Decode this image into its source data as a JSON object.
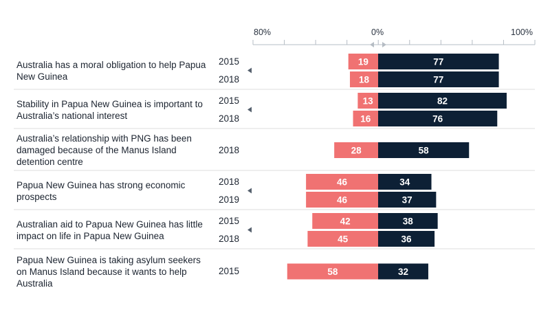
{
  "chart_data": {
    "type": "bar",
    "orientation": "horizontal-diverging",
    "axis_labels": [
      "80%",
      "0%",
      "100%"
    ],
    "colors": {
      "disagree": "#f07272",
      "agree": "#0d2035",
      "grid": "#dddddd",
      "axis": "#b5bcc4",
      "text": "#1c2430"
    },
    "groups": [
      {
        "label": "Australia has a moral obligation to help Papua New Guinea",
        "rows": [
          {
            "year": "2015",
            "disagree": 19,
            "agree": 77
          },
          {
            "year": "2018",
            "disagree": 18,
            "agree": 77
          }
        ]
      },
      {
        "label": "Stability in Papua New Guinea is important to Australia’s national interest",
        "rows": [
          {
            "year": "2015",
            "disagree": 13,
            "agree": 82
          },
          {
            "year": "2018",
            "disagree": 16,
            "agree": 76
          }
        ]
      },
      {
        "label": "Australia’s relationship with PNG has been damaged because of the Manus Island detention centre",
        "rows": [
          {
            "year": "2018",
            "disagree": 28,
            "agree": 58
          }
        ]
      },
      {
        "label": "Papua New Guinea has strong economic prospects",
        "rows": [
          {
            "year": "2018",
            "disagree": 46,
            "agree": 34
          },
          {
            "year": "2019",
            "disagree": 46,
            "agree": 37
          }
        ]
      },
      {
        "label": "Australian aid to Papua New Guinea has little impact on life in Papua New Guinea",
        "rows": [
          {
            "year": "2015",
            "disagree": 42,
            "agree": 38
          },
          {
            "year": "2018",
            "disagree": 45,
            "agree": 36
          }
        ]
      },
      {
        "label": "Papua New Guinea is taking asylum seekers on Manus Island because it wants to help Australia",
        "rows": [
          {
            "year": "2015",
            "disagree": 58,
            "agree": 32
          }
        ]
      }
    ]
  }
}
